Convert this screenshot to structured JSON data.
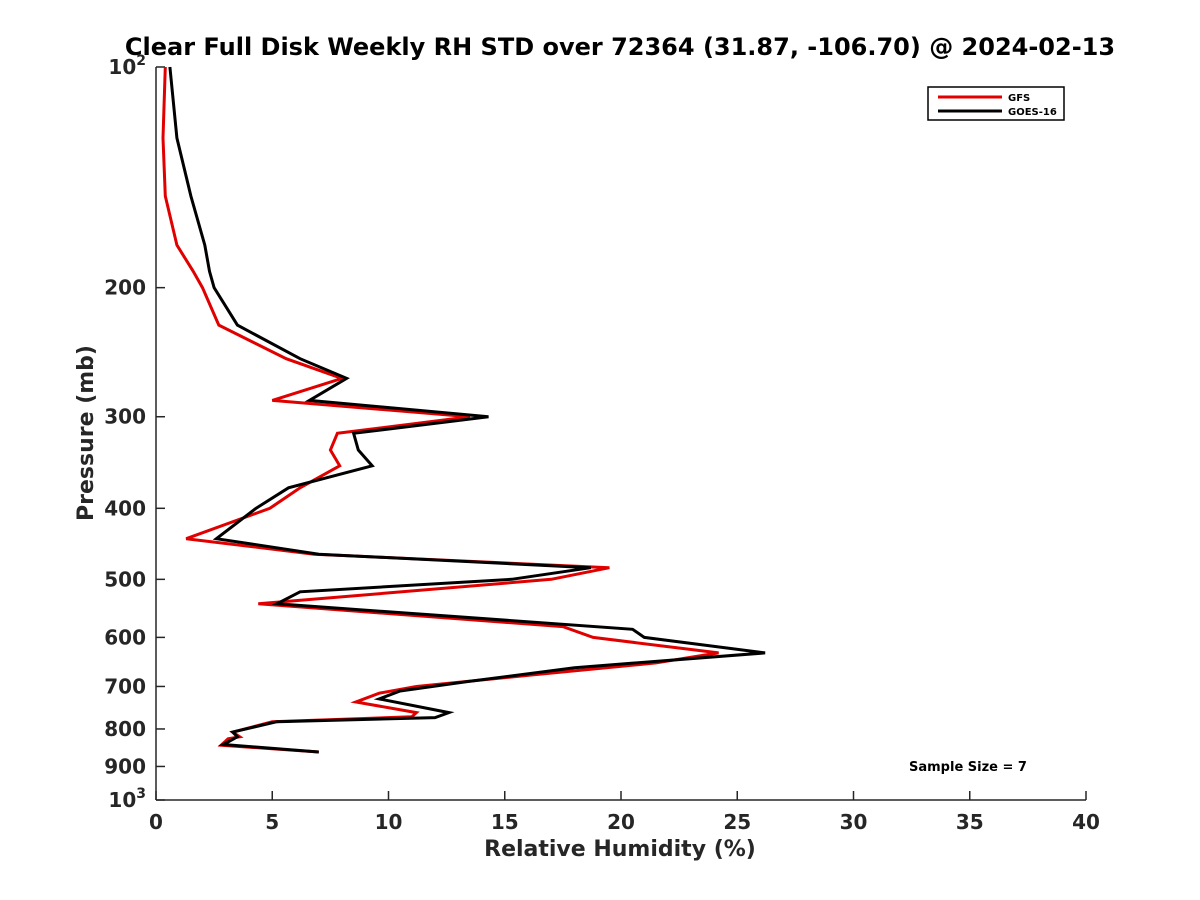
{
  "chart_data": {
    "type": "line",
    "title": "Clear Full Disk Weekly RH STD over 72364 (31.87, -106.70) @ 2024-02-13",
    "xlabel": "Relative Humidity (%)",
    "ylabel": "Pressure (mb)",
    "xlim": [
      0,
      40
    ],
    "ylim": [
      100,
      1000
    ],
    "y_scale": "log",
    "y_reversed": true,
    "x_ticks": [
      "0",
      "5",
      "10",
      "15",
      "20",
      "25",
      "30",
      "35",
      "40"
    ],
    "y_ticks": [
      {
        "value": 100,
        "base": "10",
        "exp": "2"
      },
      {
        "value": 200,
        "base": "200",
        "exp": ""
      },
      {
        "value": 300,
        "base": "300",
        "exp": ""
      },
      {
        "value": 400,
        "base": "400",
        "exp": ""
      },
      {
        "value": 500,
        "base": "500",
        "exp": ""
      },
      {
        "value": 600,
        "base": "600",
        "exp": ""
      },
      {
        "value": 700,
        "base": "700",
        "exp": ""
      },
      {
        "value": 800,
        "base": "800",
        "exp": ""
      },
      {
        "value": 900,
        "base": "900",
        "exp": ""
      },
      {
        "value": 1000,
        "base": "10",
        "exp": "3"
      }
    ],
    "grid": false,
    "legend_position": "top-right",
    "annotation": "Sample Size = 7",
    "series": [
      {
        "name": "GFS",
        "color": "#e00000",
        "points": [
          {
            "x": 0.4,
            "y": 100
          },
          {
            "x": 0.3,
            "y": 125
          },
          {
            "x": 0.4,
            "y": 150
          },
          {
            "x": 0.9,
            "y": 175
          },
          {
            "x": 1.6,
            "y": 190
          },
          {
            "x": 2.0,
            "y": 200
          },
          {
            "x": 2.7,
            "y": 225
          },
          {
            "x": 5.6,
            "y": 250
          },
          {
            "x": 8.0,
            "y": 266
          },
          {
            "x": 5.0,
            "y": 285
          },
          {
            "x": 13.5,
            "y": 300
          },
          {
            "x": 7.8,
            "y": 316
          },
          {
            "x": 7.5,
            "y": 333
          },
          {
            "x": 7.9,
            "y": 350
          },
          {
            "x": 6.2,
            "y": 375
          },
          {
            "x": 4.9,
            "y": 400
          },
          {
            "x": 1.3,
            "y": 440
          },
          {
            "x": 6.8,
            "y": 462
          },
          {
            "x": 19.5,
            "y": 482
          },
          {
            "x": 17.0,
            "y": 500
          },
          {
            "x": 4.4,
            "y": 540
          },
          {
            "x": 17.5,
            "y": 580
          },
          {
            "x": 18.8,
            "y": 600
          },
          {
            "x": 24.2,
            "y": 630
          },
          {
            "x": 21.5,
            "y": 650
          },
          {
            "x": 16.2,
            "y": 675
          },
          {
            "x": 11.2,
            "y": 700
          },
          {
            "x": 9.6,
            "y": 715
          },
          {
            "x": 8.6,
            "y": 735
          },
          {
            "x": 11.2,
            "y": 760
          },
          {
            "x": 11.0,
            "y": 770
          },
          {
            "x": 5.0,
            "y": 782
          },
          {
            "x": 3.3,
            "y": 808
          },
          {
            "x": 3.6,
            "y": 820
          },
          {
            "x": 3.1,
            "y": 825
          },
          {
            "x": 2.8,
            "y": 842
          },
          {
            "x": 7.0,
            "y": 860
          }
        ]
      },
      {
        "name": "GOES-16",
        "color": "#000000",
        "points": [
          {
            "x": 0.6,
            "y": 100
          },
          {
            "x": 0.9,
            "y": 125
          },
          {
            "x": 1.5,
            "y": 150
          },
          {
            "x": 2.1,
            "y": 175
          },
          {
            "x": 2.3,
            "y": 190
          },
          {
            "x": 2.5,
            "y": 200
          },
          {
            "x": 3.5,
            "y": 225
          },
          {
            "x": 6.2,
            "y": 250
          },
          {
            "x": 8.2,
            "y": 266
          },
          {
            "x": 6.6,
            "y": 285
          },
          {
            "x": 14.3,
            "y": 300
          },
          {
            "x": 8.5,
            "y": 316
          },
          {
            "x": 8.7,
            "y": 333
          },
          {
            "x": 9.3,
            "y": 350
          },
          {
            "x": 5.7,
            "y": 375
          },
          {
            "x": 4.3,
            "y": 400
          },
          {
            "x": 2.6,
            "y": 440
          },
          {
            "x": 7.0,
            "y": 462
          },
          {
            "x": 18.7,
            "y": 482
          },
          {
            "x": 15.3,
            "y": 500
          },
          {
            "x": 6.2,
            "y": 520
          },
          {
            "x": 5.2,
            "y": 540
          },
          {
            "x": 20.5,
            "y": 585
          },
          {
            "x": 21.0,
            "y": 600
          },
          {
            "x": 26.2,
            "y": 630
          },
          {
            "x": 18.0,
            "y": 660
          },
          {
            "x": 13.3,
            "y": 690
          },
          {
            "x": 10.5,
            "y": 710
          },
          {
            "x": 9.6,
            "y": 728
          },
          {
            "x": 12.6,
            "y": 760
          },
          {
            "x": 12.0,
            "y": 772
          },
          {
            "x": 5.2,
            "y": 782
          },
          {
            "x": 3.3,
            "y": 808
          },
          {
            "x": 3.5,
            "y": 820
          },
          {
            "x": 2.9,
            "y": 840
          },
          {
            "x": 7.0,
            "y": 860
          }
        ]
      }
    ]
  }
}
